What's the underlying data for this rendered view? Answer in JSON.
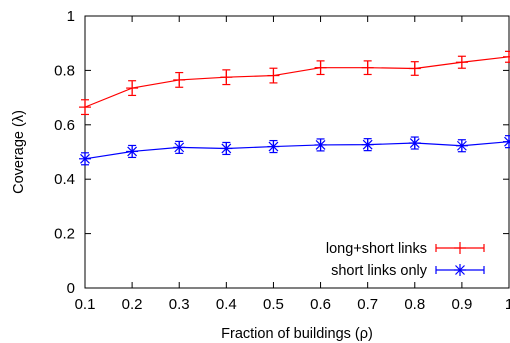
{
  "chart_data": {
    "type": "line",
    "xlabel": "Fraction of buildings (ρ)",
    "ylabel": "Coverage (λ)",
    "xlim": [
      0.1,
      1.0
    ],
    "ylim": [
      0,
      1
    ],
    "xticks": [
      "0.1",
      "0.2",
      "0.3",
      "0.4",
      "0.5",
      "0.6",
      "0.7",
      "0.8",
      "0.9",
      "1"
    ],
    "yticks": [
      "0",
      "0.2",
      "0.4",
      "0.6",
      "0.8",
      "1"
    ],
    "grid": false,
    "legend_position": "bottom-right",
    "x": [
      0.1,
      0.2,
      0.3,
      0.4,
      0.5,
      0.6,
      0.7,
      0.8,
      0.9,
      1.0
    ],
    "series": [
      {
        "name": "long+short links",
        "color": "#ff0000",
        "marker": "plus",
        "values": [
          0.665,
          0.735,
          0.765,
          0.775,
          0.781,
          0.81,
          0.81,
          0.807,
          0.83,
          0.85
        ],
        "errors": [
          0.027,
          0.027,
          0.027,
          0.027,
          0.027,
          0.025,
          0.025,
          0.025,
          0.022,
          0.02
        ]
      },
      {
        "name": "short links only",
        "color": "#0000ff",
        "marker": "star",
        "values": [
          0.475,
          0.502,
          0.517,
          0.513,
          0.52,
          0.526,
          0.527,
          0.533,
          0.523,
          0.538
        ],
        "errors": [
          0.022,
          0.022,
          0.022,
          0.022,
          0.022,
          0.022,
          0.022,
          0.022,
          0.022,
          0.022
        ]
      }
    ]
  }
}
